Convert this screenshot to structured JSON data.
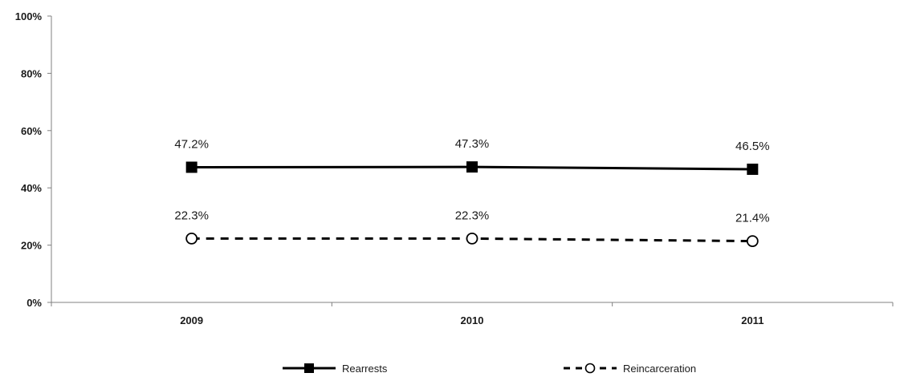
{
  "chart_data": {
    "type": "line",
    "categories": [
      "2009",
      "2010",
      "2011"
    ],
    "ylim": [
      0,
      100
    ],
    "yticks": [
      "0%",
      "20%",
      "40%",
      "60%",
      "80%",
      "100%"
    ],
    "ytick_values": [
      0,
      20,
      40,
      60,
      80,
      100
    ],
    "grid": false,
    "legend_position": "bottom",
    "series": [
      {
        "name": "Rearrests",
        "values": [
          47.2,
          47.3,
          46.5
        ],
        "labels": [
          "47.2%",
          "47.3%",
          "46.5%"
        ],
        "line_style": "solid",
        "marker": "filled-square",
        "color": "#000000"
      },
      {
        "name": "Reincarceration",
        "values": [
          22.3,
          22.3,
          21.4
        ],
        "labels": [
          "22.3%",
          "22.3%",
          "21.4%"
        ],
        "line_style": "dashed",
        "marker": "open-circle",
        "color": "#000000"
      }
    ]
  }
}
